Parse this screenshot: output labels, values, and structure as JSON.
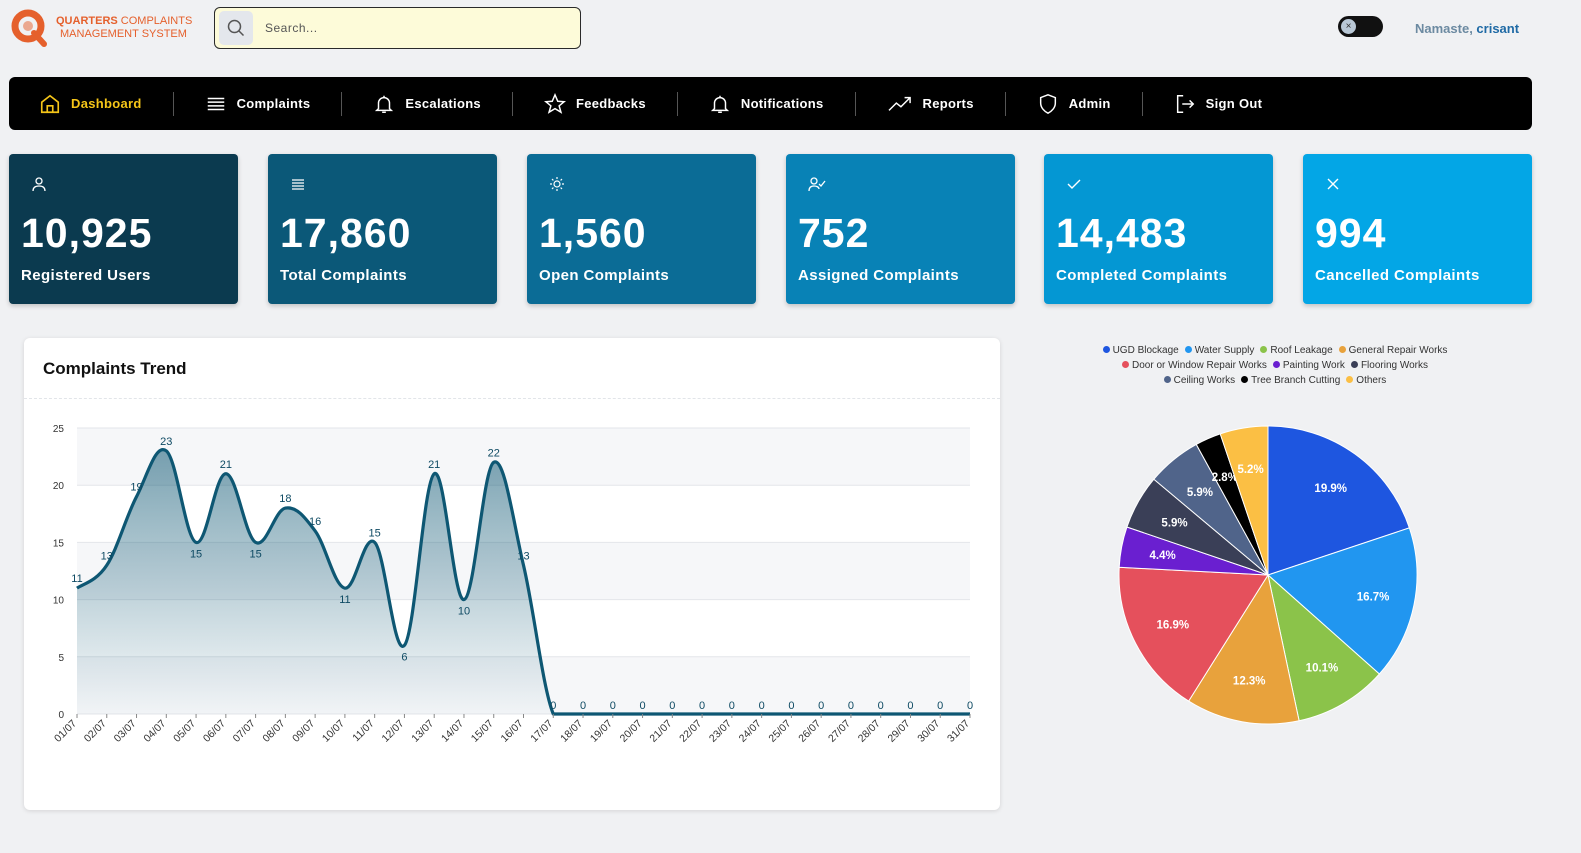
{
  "brand": {
    "line1_bold": "QUARTERS",
    "line1_rest": " COMPLAINTS",
    "line2": "MANAGEMENT SYSTEM"
  },
  "search": {
    "placeholder": "Search..."
  },
  "greeting": {
    "prefix": "Namaste, ",
    "user": "crisant"
  },
  "nav": [
    {
      "label": "Dashboard",
      "icon": "home-icon",
      "active": true
    },
    {
      "label": "Complaints",
      "icon": "list-icon"
    },
    {
      "label": "Escalations",
      "icon": "bell-icon"
    },
    {
      "label": "Feedbacks",
      "icon": "star-icon"
    },
    {
      "label": "Notifications",
      "icon": "bell-icon"
    },
    {
      "label": "Reports",
      "icon": "trending-up-icon"
    },
    {
      "label": "Admin",
      "icon": "shield-icon"
    },
    {
      "label": "Sign Out",
      "icon": "sign-out-icon"
    }
  ],
  "cards": [
    {
      "value": "10,925",
      "label": "Registered Users",
      "icon": "user-icon",
      "color": "#0b3a4f"
    },
    {
      "value": "17,860",
      "label": "Total Complaints",
      "icon": "list-icon",
      "color": "#0b5878"
    },
    {
      "value": "1,560",
      "label": "Open Complaints",
      "icon": "sun-icon",
      "color": "#0b6c96"
    },
    {
      "value": "752",
      "label": "Assigned Complaints",
      "icon": "user-check-icon",
      "color": "#0882b6"
    },
    {
      "value": "14,483",
      "label": "Completed Complaints",
      "icon": "check-icon",
      "color": "#0497d3"
    },
    {
      "value": "994",
      "label": "Cancelled Complaints",
      "icon": "close-icon",
      "color": "#03a6e6"
    }
  ],
  "trend_title": "Complaints Trend",
  "chart_data": [
    {
      "type": "area",
      "title": "Complaints Trend",
      "x": [
        "01/07",
        "02/07",
        "03/07",
        "04/07",
        "05/07",
        "06/07",
        "07/07",
        "08/07",
        "09/07",
        "10/07",
        "11/07",
        "12/07",
        "13/07",
        "14/07",
        "15/07",
        "16/07",
        "17/07",
        "18/07",
        "19/07",
        "20/07",
        "21/07",
        "22/07",
        "23/07",
        "24/07",
        "25/07",
        "26/07",
        "27/07",
        "28/07",
        "29/07",
        "30/07",
        "31/07"
      ],
      "values": [
        11,
        13,
        19,
        23,
        15,
        21,
        15,
        18,
        16,
        11,
        15,
        6,
        21,
        10,
        22,
        13,
        0,
        0,
        0,
        0,
        0,
        0,
        0,
        0,
        0,
        0,
        0,
        0,
        0,
        0,
        0
      ],
      "yticks": [
        0,
        5,
        10,
        15,
        20,
        25
      ],
      "ylim": [
        0,
        25
      ],
      "grid": true,
      "color": "#0e5773"
    },
    {
      "type": "pie",
      "legend": "top",
      "slices": [
        {
          "name": "UGD Blockage",
          "value": 19.9,
          "color": "#1e56e0"
        },
        {
          "name": "Water Supply",
          "value": 16.7,
          "color": "#2196f0"
        },
        {
          "name": "Roof Leakage",
          "value": 10.1,
          "color": "#8bc34a"
        },
        {
          "name": "General Repair Works",
          "value": 12.3,
          "color": "#e8a23c"
        },
        {
          "name": "Door or Window Repair Works",
          "value": 16.9,
          "color": "#e5505c"
        },
        {
          "name": "Painting Work",
          "value": 4.4,
          "color": "#6a1fd0"
        },
        {
          "name": "Flooring Works",
          "value": 5.9,
          "color": "#3a3f57"
        },
        {
          "name": "Ceiling Works",
          "value": 5.9,
          "color": "#50648a"
        },
        {
          "name": "Tree Branch Cutting",
          "value": 2.8,
          "color": "#000000"
        },
        {
          "name": "Others",
          "value": 5.2,
          "color": "#fbbf44"
        }
      ]
    }
  ]
}
